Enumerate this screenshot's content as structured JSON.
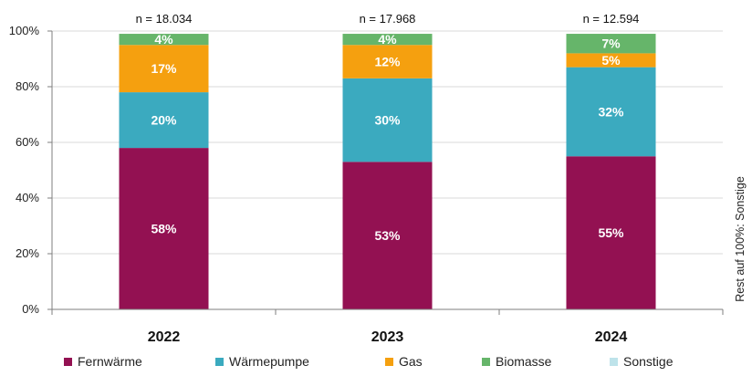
{
  "chart_data": {
    "type": "bar",
    "stacked": true,
    "categories": [
      "2022",
      "2023",
      "2024"
    ],
    "sample_sizes": [
      "n = 18.034",
      "n = 17.968",
      "n = 12.594"
    ],
    "ylim": [
      0,
      100
    ],
    "yticks": [
      0,
      20,
      40,
      60,
      80,
      100
    ],
    "ytick_labels": [
      "0%",
      "20%",
      "40%",
      "60%",
      "80%",
      "100%"
    ],
    "grid": true,
    "legend_position": "bottom",
    "side_note": "Rest auf 100%: Sonstige",
    "series": [
      {
        "name": "Fernwärme",
        "color": "#931152",
        "values": [
          58,
          53,
          55
        ],
        "labels": [
          "58%",
          "53%",
          "55%"
        ]
      },
      {
        "name": "Wärmepumpe",
        "color": "#3BAABF",
        "values": [
          20,
          30,
          32
        ],
        "labels": [
          "20%",
          "30%",
          "32%"
        ]
      },
      {
        "name": "Gas",
        "color": "#F5A00F",
        "values": [
          17,
          12,
          5
        ],
        "labels": [
          "17%",
          "12%",
          "5%"
        ]
      },
      {
        "name": "Biomasse",
        "color": "#66B56A",
        "values": [
          4,
          4,
          7
        ],
        "labels": [
          "4%",
          "4%",
          "7%"
        ]
      },
      {
        "name": "Sonstige",
        "color": "#BEE3EA",
        "values": [
          0,
          0,
          0
        ],
        "labels": [
          "",
          "",
          ""
        ]
      }
    ]
  }
}
